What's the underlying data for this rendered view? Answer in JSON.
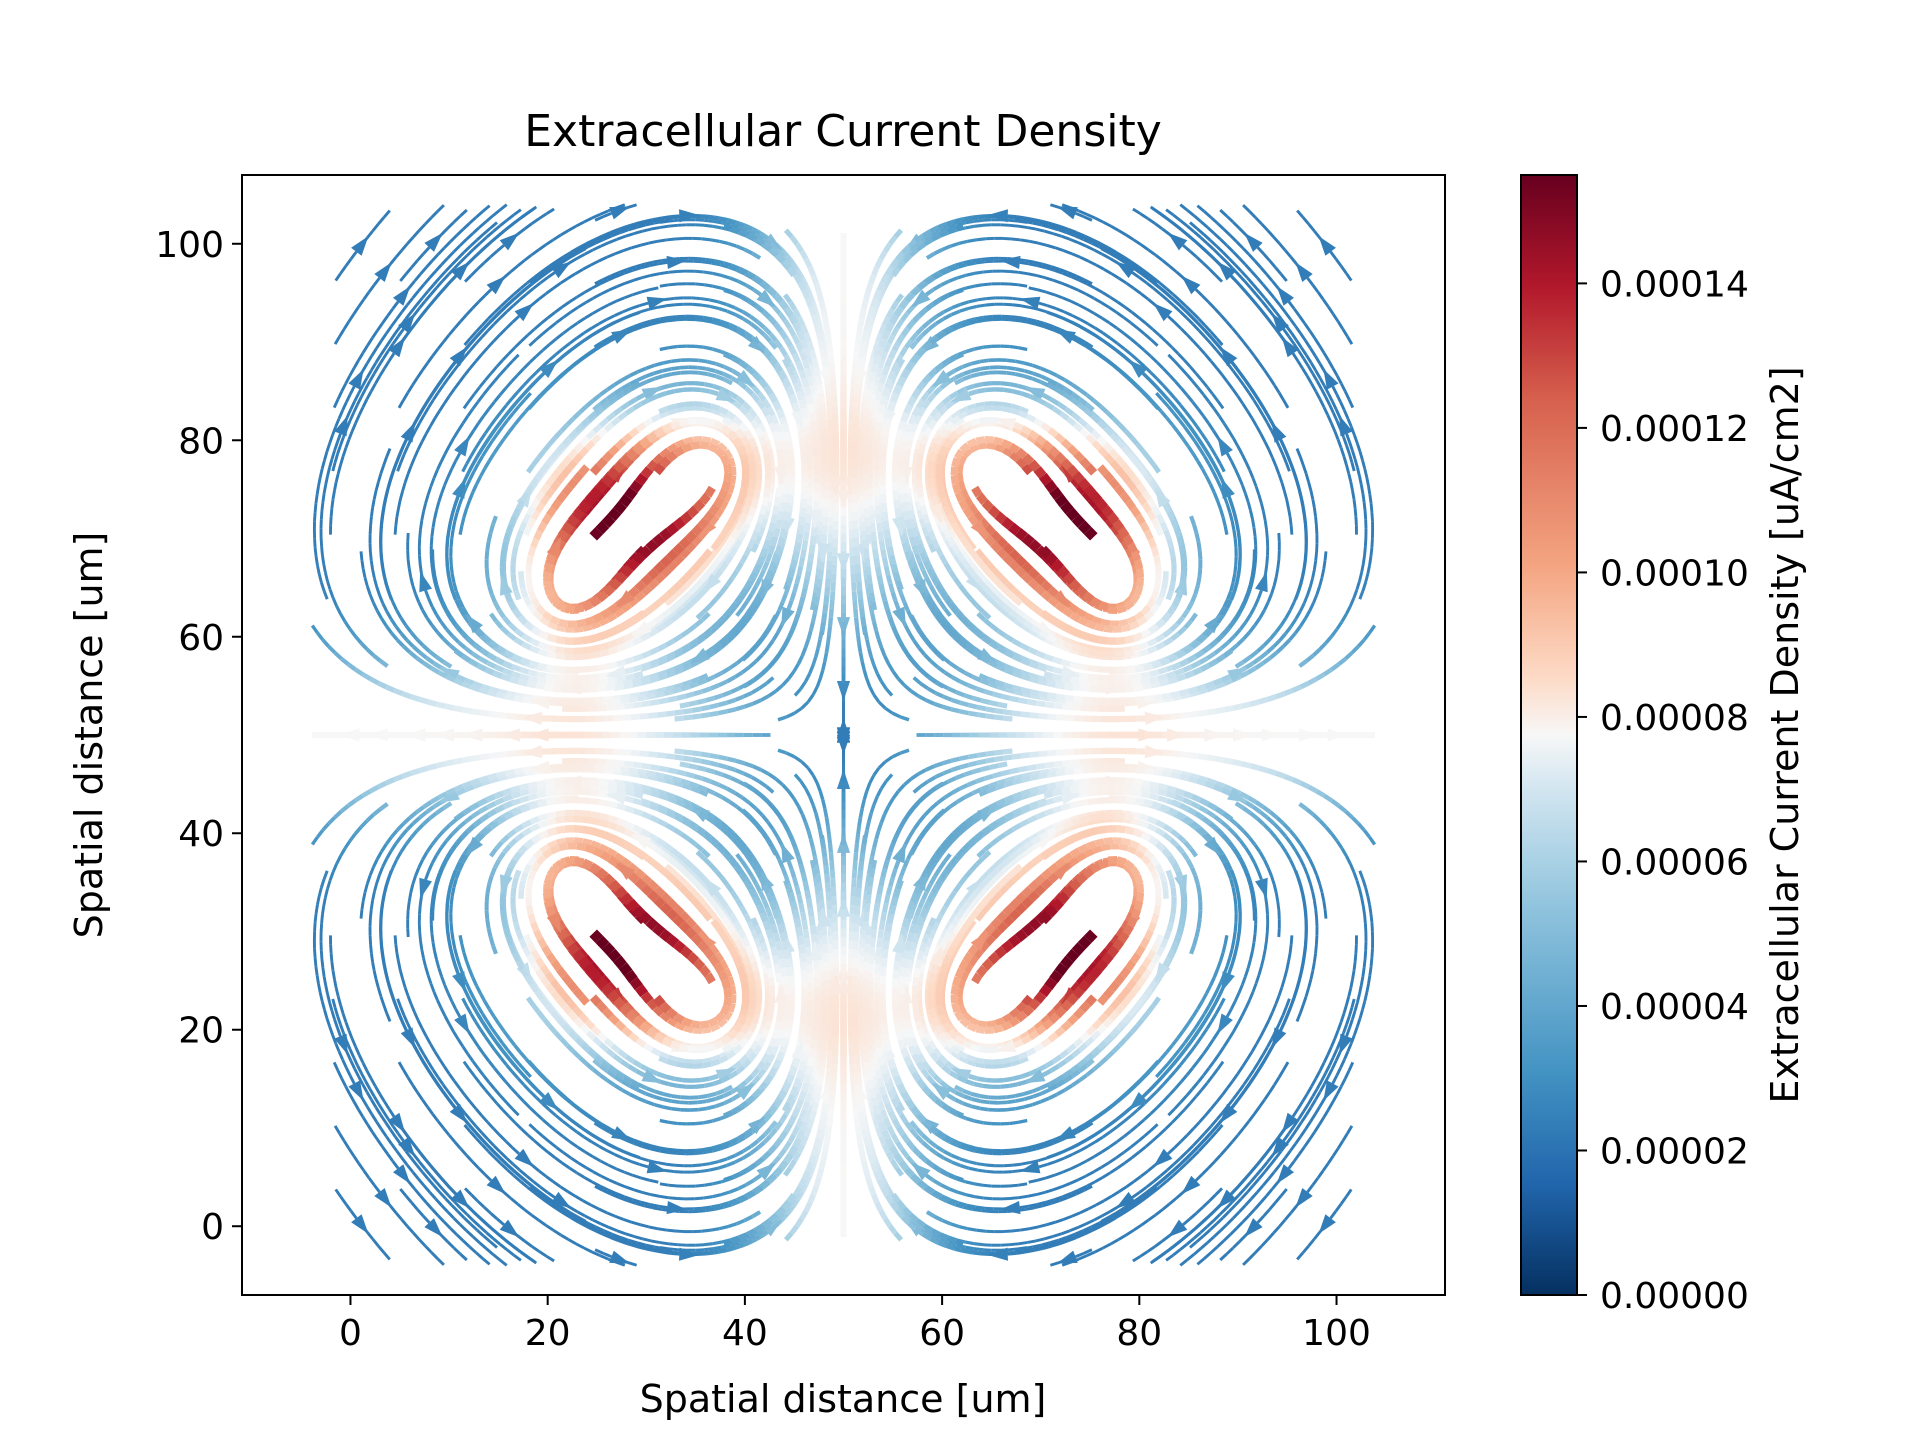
{
  "chart_data": {
    "type": "streamplot",
    "title": "Extracellular Current Density",
    "xlabel": "Spatial distance [um]",
    "ylabel": "Spatial distance [um]",
    "xlim": [
      -11,
      111
    ],
    "ylim": [
      -7,
      107
    ],
    "x_ticks": [
      0,
      20,
      40,
      60,
      80,
      100
    ],
    "y_ticks": [
      0,
      20,
      40,
      60,
      80,
      100
    ],
    "colorbar": {
      "label": "Extracellular Current Density [uA/cm2]",
      "colormap": "RdBu_r",
      "range": [
        0,
        0.000155
      ],
      "ticks": [
        "0.00000",
        "0.00002",
        "0.00004",
        "0.00006",
        "0.00008",
        "0.00010",
        "0.00012",
        "0.00014"
      ],
      "tick_values": [
        0,
        2e-05,
        4e-05,
        6e-05,
        8e-05,
        0.0001,
        0.00012,
        0.00014
      ]
    },
    "vortex_centers": [
      [
        37.5,
        78
      ],
      [
        62.5,
        78
      ],
      [
        22,
        62.5
      ],
      [
        78,
        62.5
      ],
      [
        22,
        37.5
      ],
      [
        78,
        37.5
      ],
      [
        37.5,
        22
      ],
      [
        62.5,
        22
      ]
    ],
    "peak_regions": [
      {
        "x": 28,
        "y": 72,
        "value": 0.000155
      },
      {
        "x": 72,
        "y": 72,
        "value": 0.000155
      },
      {
        "x": 28,
        "y": 28,
        "value": 0.000155
      },
      {
        "x": 72,
        "y": 28,
        "value": 0.000155
      }
    ],
    "grid": false,
    "colors": {
      "low": "#053061",
      "mid": "#f7f7f7",
      "high": "#67001f"
    }
  }
}
